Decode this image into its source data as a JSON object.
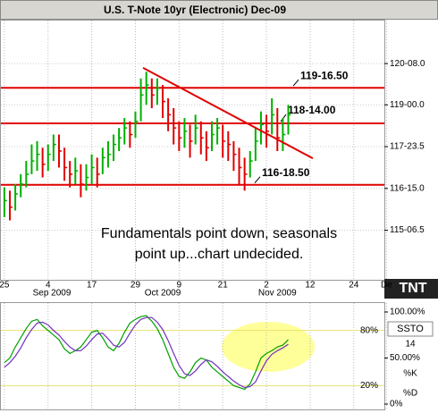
{
  "chart_data": [
    {
      "type": "ohlc",
      "title": "U.S. T-Note 10yr (Electronic) Dec-09",
      "x": [
        0,
        1,
        2,
        3,
        4,
        5,
        6,
        7,
        8,
        9,
        10,
        11,
        12,
        13,
        14,
        15,
        16,
        17,
        18,
        19,
        20,
        21,
        22,
        23,
        24,
        25,
        26,
        27,
        28,
        29,
        30,
        31,
        32,
        33,
        34,
        35,
        36,
        37,
        38,
        39,
        40,
        41,
        42,
        43,
        44,
        45,
        46,
        47,
        48,
        49,
        50,
        51,
        52
      ],
      "high": [
        116.5,
        116.4,
        116.6,
        116.9,
        117.3,
        117.8,
        117.9,
        117.7,
        117.8,
        118.1,
        118.1,
        117.7,
        117.3,
        117.4,
        117.2,
        117.2,
        117.5,
        117.4,
        117.7,
        117.9,
        118.1,
        118.3,
        118.6,
        118.5,
        118.8,
        119.8,
        120.0,
        119.8,
        119.8,
        119.6,
        119.2,
        118.9,
        118.5,
        118.6,
        118.4,
        118.7,
        118.5,
        118.2,
        118.5,
        118.6,
        118.4,
        118.2,
        117.9,
        117.7,
        117.4,
        117.6,
        118.3,
        118.8,
        118.7,
        119.2,
        118.9,
        118.6,
        119.0
      ],
      "low": [
        115.6,
        115.5,
        115.8,
        116.2,
        116.5,
        116.9,
        117.0,
        116.8,
        117.0,
        117.3,
        117.1,
        116.7,
        116.5,
        116.6,
        116.2,
        116.4,
        116.6,
        116.5,
        116.9,
        117.1,
        117.3,
        117.6,
        117.8,
        117.7,
        118.0,
        118.5,
        119.0,
        118.9,
        119.0,
        118.6,
        118.2,
        117.8,
        117.6,
        117.7,
        117.4,
        117.8,
        117.5,
        117.3,
        117.6,
        117.8,
        117.4,
        117.3,
        117.0,
        116.6,
        116.4,
        116.8,
        117.3,
        117.8,
        117.7,
        118.1,
        117.6,
        117.6,
        118.1
      ],
      "close": [
        116.1,
        115.9,
        116.3,
        116.6,
        116.9,
        117.3,
        117.5,
        117.2,
        117.5,
        117.8,
        117.6,
        117.1,
        116.9,
        117.0,
        116.6,
        116.8,
        117.1,
        116.9,
        117.4,
        117.5,
        117.8,
        118.0,
        118.3,
        118.1,
        118.5,
        119.3,
        119.6,
        119.3,
        119.5,
        119.1,
        118.7,
        118.3,
        118.0,
        118.2,
        117.9,
        118.3,
        118.0,
        117.7,
        118.1,
        118.3,
        117.9,
        117.8,
        117.5,
        117.1,
        116.9,
        117.3,
        117.9,
        118.4,
        118.2,
        118.7,
        118.0,
        118.1,
        118.7
      ],
      "up_color": "#00b000",
      "down_color": "#e00000",
      "xlim": [
        -0.8,
        69.6
      ],
      "ylim": [
        113.7,
        121.58
      ],
      "xticks": [
        {
          "value": 0,
          "label": "25"
        },
        {
          "value": 8,
          "label": "4"
        },
        {
          "value": 16,
          "label": "17"
        },
        {
          "value": 24,
          "label": "29"
        },
        {
          "value": 32,
          "label": "9"
        },
        {
          "value": 40,
          "label": "21"
        },
        {
          "value": 48,
          "label": "2"
        },
        {
          "value": 56,
          "label": "12"
        },
        {
          "value": 64,
          "label": "24"
        },
        {
          "value": 70,
          "label": "De"
        }
      ],
      "x_sublabels": [
        {
          "value": 8.7,
          "label": "Sep 2009"
        },
        {
          "value": 29,
          "label": "Oct 2009"
        },
        {
          "value": 50,
          "label": "Nov 2009"
        }
      ],
      "yticks": [
        {
          "value": 120.25,
          "label": "120-08.0"
        },
        {
          "value": 119,
          "label": "119-00.0"
        },
        {
          "value": 117.734375,
          "label": "117-23.5"
        },
        {
          "value": 116.46875,
          "label": "116-15.0"
        },
        {
          "value": 115.203125,
          "label": "115-06.5"
        }
      ],
      "levels": [
        {
          "value": 119.515625,
          "label": "119-16.50"
        },
        {
          "value": 118.4375,
          "label": "118-14.00"
        },
        {
          "value": 116.578125,
          "label": "116-18.50"
        }
      ],
      "level_color": "#e00000",
      "trendline": {
        "x": [
          25.4,
          56.5
        ],
        "y": [
          120.12,
          117.38
        ],
        "color": "#e00000"
      },
      "annotation": [
        "Fundamentals point down, seasonals point up...chart undecided."
      ],
      "logo": "TNT",
      "grid": true
    },
    {
      "type": "line",
      "indicator": "SSTO",
      "period": 14,
      "x": [
        0,
        1,
        2,
        3,
        4,
        5,
        6,
        7,
        8,
        9,
        10,
        11,
        12,
        13,
        14,
        15,
        16,
        17,
        18,
        19,
        20,
        21,
        22,
        23,
        24,
        25,
        26,
        27,
        28,
        29,
        30,
        31,
        32,
        33,
        34,
        35,
        36,
        37,
        38,
        39,
        40,
        41,
        42,
        43,
        44,
        45,
        46,
        47,
        48,
        49,
        50,
        51,
        52
      ],
      "series": [
        {
          "name": "%K",
          "color": "#00a000",
          "values": [
            45,
            50,
            62,
            72,
            82,
            90,
            92,
            85,
            80,
            75,
            70,
            60,
            55,
            58,
            62,
            70,
            78,
            80,
            72,
            62,
            58,
            66,
            78,
            88,
            92,
            95,
            96,
            90,
            82,
            70,
            55,
            40,
            30,
            28,
            35,
            45,
            50,
            48,
            40,
            35,
            30,
            25,
            20,
            18,
            16,
            22,
            35,
            50,
            55,
            58,
            62,
            64,
            70
          ]
        },
        {
          "name": "%D",
          "color": "#7030c0",
          "values": [
            40,
            45,
            52,
            61,
            72,
            81,
            88,
            89,
            86,
            80,
            75,
            68,
            62,
            58,
            58,
            63,
            70,
            76,
            77,
            71,
            64,
            62,
            67,
            77,
            86,
            92,
            94,
            94,
            89,
            81,
            69,
            55,
            42,
            33,
            31,
            36,
            43,
            48,
            46,
            41,
            35,
            30,
            25,
            21,
            18,
            19,
            24,
            36,
            47,
            54,
            58,
            61,
            65
          ]
        }
      ],
      "xlim": [
        -0.8,
        69.6
      ],
      "ylim": [
        -5.8,
        110.7
      ],
      "yticks": [
        {
          "value": 100,
          "label": "100.00%"
        },
        {
          "value": 50,
          "label": "50.00%"
        },
        {
          "value": 0,
          "label": "0%"
        }
      ],
      "bands": [
        {
          "value": 80,
          "label": "80%"
        },
        {
          "value": 20,
          "label": "20%"
        }
      ],
      "band_color": "#e8e070"
    }
  ]
}
